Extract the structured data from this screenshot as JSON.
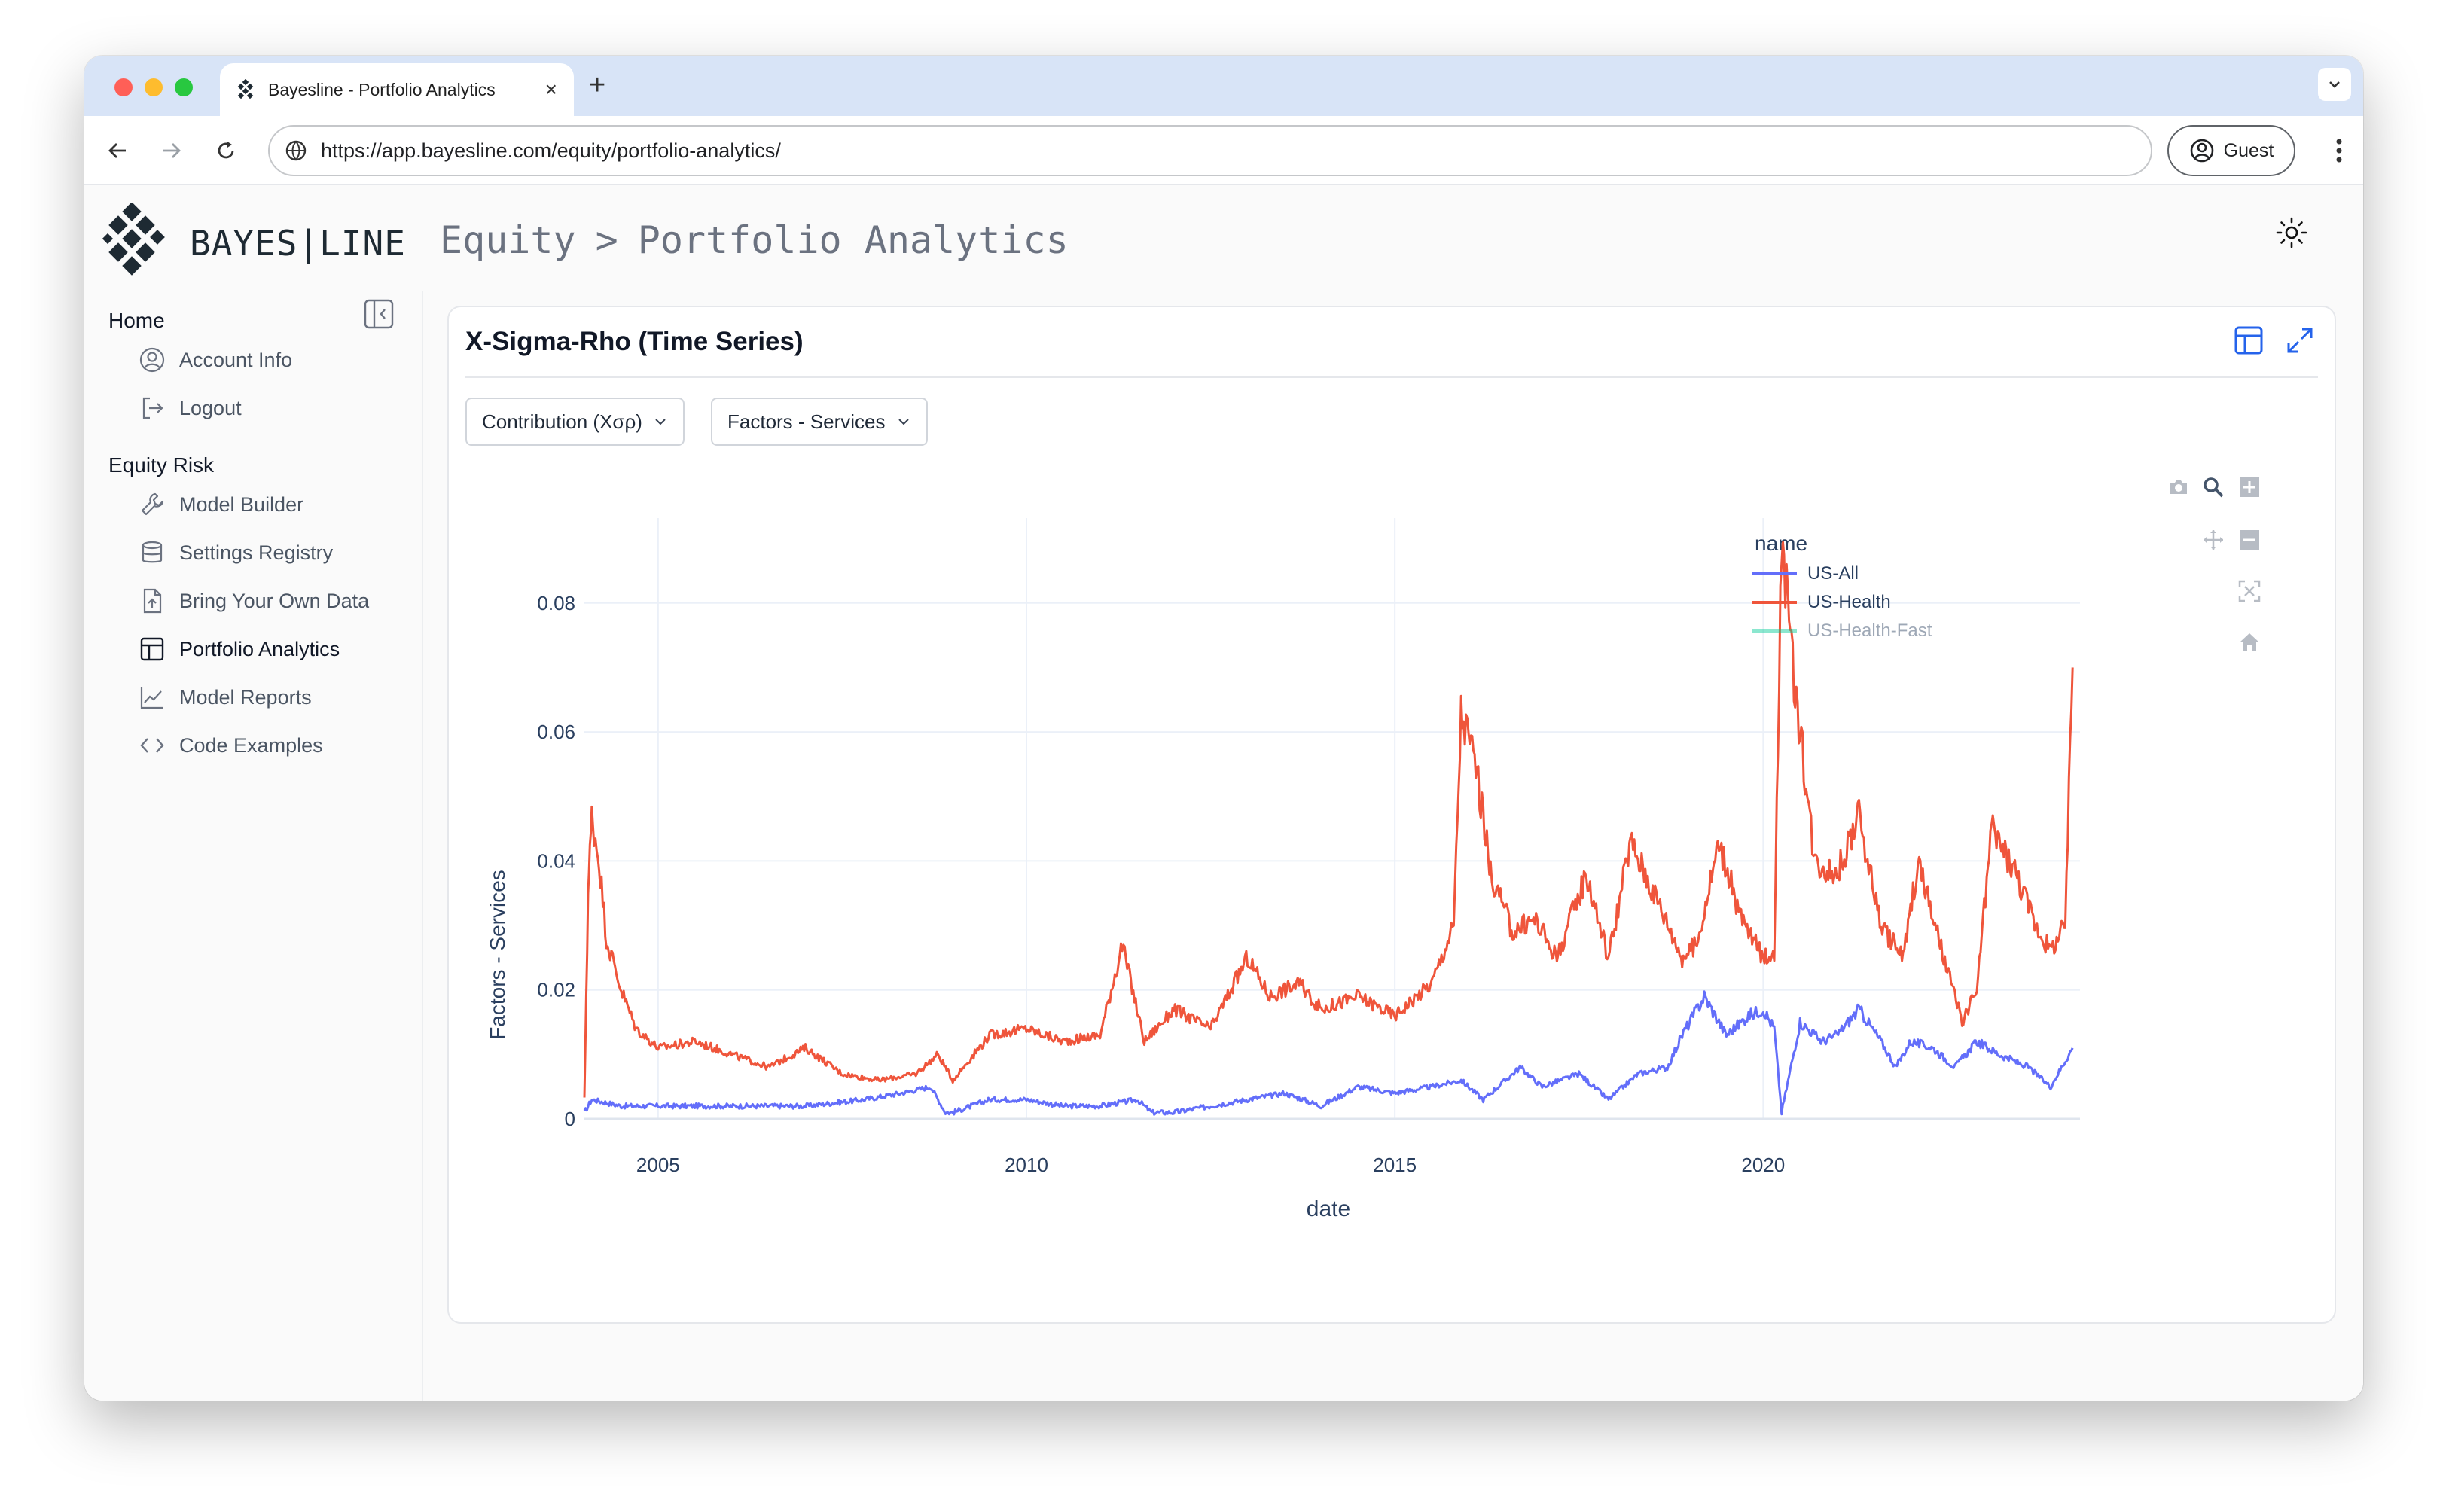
{
  "browser": {
    "tab_title": "Bayesline - Portfolio Analytics",
    "url": "https://app.bayesline.com/equity/portfolio-analytics/",
    "profile_label": "Guest",
    "new_tab_symbol": "+",
    "close_symbol": "×"
  },
  "app": {
    "brand": "BAYES|LINE",
    "breadcrumb": [
      "Equity",
      ">",
      "Portfolio Analytics"
    ]
  },
  "sidebar": {
    "sections": [
      {
        "title": "Home",
        "items": [
          {
            "label": "Account Info",
            "icon": "user-circle-icon"
          },
          {
            "label": "Logout",
            "icon": "logout-icon"
          }
        ]
      },
      {
        "title": "Equity Risk",
        "items": [
          {
            "label": "Model Builder",
            "icon": "wrench-icon"
          },
          {
            "label": "Settings Registry",
            "icon": "database-icon"
          },
          {
            "label": "Bring Your Own Data",
            "icon": "file-upload-icon"
          },
          {
            "label": "Portfolio Analytics",
            "icon": "table-icon",
            "active": true
          },
          {
            "label": "Model Reports",
            "icon": "line-chart-icon"
          },
          {
            "label": "Code Examples",
            "icon": "code-icon"
          }
        ]
      }
    ]
  },
  "card": {
    "title": "X-Sigma-Rho (Time Series)",
    "dropdowns": {
      "metric": "Contribution (Xσρ)",
      "group": "Factors - Services"
    }
  },
  "chart_data": {
    "type": "line",
    "title": "",
    "xlabel": "date",
    "ylabel": "Factors - Services",
    "xlim": [
      2004.0,
      2024.3
    ],
    "ylim": [
      0,
      0.092
    ],
    "x_ticks": [
      "2005",
      "2010",
      "2015",
      "2020"
    ],
    "y_ticks": [
      "0",
      "0.02",
      "0.04",
      "0.06",
      "0.08"
    ],
    "legend_title": "name",
    "legend_position": "top-right",
    "series": [
      {
        "name": "US-All",
        "color": "#636efa",
        "points": [
          [
            2004.0,
            0.001
          ],
          [
            2004.1,
            0.003
          ],
          [
            2004.5,
            0.002
          ],
          [
            2005.0,
            0.002
          ],
          [
            2006.0,
            0.002
          ],
          [
            2007.0,
            0.002
          ],
          [
            2007.8,
            0.003
          ],
          [
            2008.3,
            0.004
          ],
          [
            2008.7,
            0.005
          ],
          [
            2008.9,
            0.001
          ],
          [
            2009.0,
            0.001
          ],
          [
            2009.5,
            0.003
          ],
          [
            2010.0,
            0.003
          ],
          [
            2010.5,
            0.002
          ],
          [
            2011.0,
            0.002
          ],
          [
            2011.5,
            0.003
          ],
          [
            2011.7,
            0.001
          ],
          [
            2012.0,
            0.001
          ],
          [
            2012.5,
            0.002
          ],
          [
            2013.0,
            0.003
          ],
          [
            2013.5,
            0.004
          ],
          [
            2014.0,
            0.002
          ],
          [
            2014.5,
            0.005
          ],
          [
            2015.0,
            0.004
          ],
          [
            2015.5,
            0.005
          ],
          [
            2015.9,
            0.006
          ],
          [
            2016.2,
            0.003
          ],
          [
            2016.7,
            0.008
          ],
          [
            2017.0,
            0.005
          ],
          [
            2017.5,
            0.007
          ],
          [
            2017.9,
            0.003
          ],
          [
            2018.3,
            0.007
          ],
          [
            2018.7,
            0.008
          ],
          [
            2018.9,
            0.013
          ],
          [
            2019.2,
            0.019
          ],
          [
            2019.5,
            0.013
          ],
          [
            2019.8,
            0.016
          ],
          [
            2020.0,
            0.017
          ],
          [
            2020.15,
            0.014
          ],
          [
            2020.25,
            0.001
          ],
          [
            2020.5,
            0.015
          ],
          [
            2020.8,
            0.012
          ],
          [
            2021.0,
            0.013
          ],
          [
            2021.3,
            0.017
          ],
          [
            2021.6,
            0.012
          ],
          [
            2021.8,
            0.008
          ],
          [
            2022.0,
            0.012
          ],
          [
            2022.3,
            0.011
          ],
          [
            2022.6,
            0.008
          ],
          [
            2022.9,
            0.012
          ],
          [
            2023.2,
            0.01
          ],
          [
            2023.6,
            0.008
          ],
          [
            2023.9,
            0.005
          ],
          [
            2024.1,
            0.009
          ],
          [
            2024.2,
            0.011
          ]
        ]
      },
      {
        "name": "US-Health",
        "color": "#ef553b",
        "points": [
          [
            2004.0,
            0.003
          ],
          [
            2004.05,
            0.035
          ],
          [
            2004.1,
            0.047
          ],
          [
            2004.2,
            0.04
          ],
          [
            2004.3,
            0.028
          ],
          [
            2004.5,
            0.02
          ],
          [
            2004.7,
            0.014
          ],
          [
            2005.0,
            0.011
          ],
          [
            2005.5,
            0.012
          ],
          [
            2006.0,
            0.01
          ],
          [
            2006.5,
            0.008
          ],
          [
            2007.0,
            0.011
          ],
          [
            2007.5,
            0.007
          ],
          [
            2008.0,
            0.006
          ],
          [
            2008.5,
            0.007
          ],
          [
            2008.8,
            0.01
          ],
          [
            2009.0,
            0.006
          ],
          [
            2009.5,
            0.013
          ],
          [
            2010.0,
            0.014
          ],
          [
            2010.5,
            0.012
          ],
          [
            2011.0,
            0.013
          ],
          [
            2011.3,
            0.027
          ],
          [
            2011.6,
            0.012
          ],
          [
            2012.0,
            0.017
          ],
          [
            2012.5,
            0.014
          ],
          [
            2013.0,
            0.025
          ],
          [
            2013.3,
            0.019
          ],
          [
            2013.7,
            0.021
          ],
          [
            2014.0,
            0.017
          ],
          [
            2014.5,
            0.019
          ],
          [
            2015.0,
            0.016
          ],
          [
            2015.5,
            0.021
          ],
          [
            2015.8,
            0.03
          ],
          [
            2015.9,
            0.063
          ],
          [
            2016.1,
            0.055
          ],
          [
            2016.3,
            0.038
          ],
          [
            2016.6,
            0.029
          ],
          [
            2016.9,
            0.031
          ],
          [
            2017.2,
            0.025
          ],
          [
            2017.6,
            0.038
          ],
          [
            2017.9,
            0.025
          ],
          [
            2018.2,
            0.043
          ],
          [
            2018.6,
            0.033
          ],
          [
            2018.9,
            0.025
          ],
          [
            2019.1,
            0.027
          ],
          [
            2019.4,
            0.043
          ],
          [
            2019.7,
            0.031
          ],
          [
            2020.0,
            0.025
          ],
          [
            2020.15,
            0.026
          ],
          [
            2020.25,
            0.091
          ],
          [
            2020.4,
            0.07
          ],
          [
            2020.7,
            0.04
          ],
          [
            2021.0,
            0.038
          ],
          [
            2021.3,
            0.047
          ],
          [
            2021.6,
            0.03
          ],
          [
            2021.9,
            0.025
          ],
          [
            2022.1,
            0.04
          ],
          [
            2022.4,
            0.027
          ],
          [
            2022.7,
            0.015
          ],
          [
            2022.9,
            0.02
          ],
          [
            2023.1,
            0.045
          ],
          [
            2023.4,
            0.039
          ],
          [
            2023.7,
            0.03
          ],
          [
            2023.9,
            0.026
          ],
          [
            2024.1,
            0.03
          ],
          [
            2024.2,
            0.07
          ]
        ]
      },
      {
        "name": "US-Health-Fast",
        "color": "#00cc96",
        "legend_only": true,
        "points": []
      }
    ]
  }
}
